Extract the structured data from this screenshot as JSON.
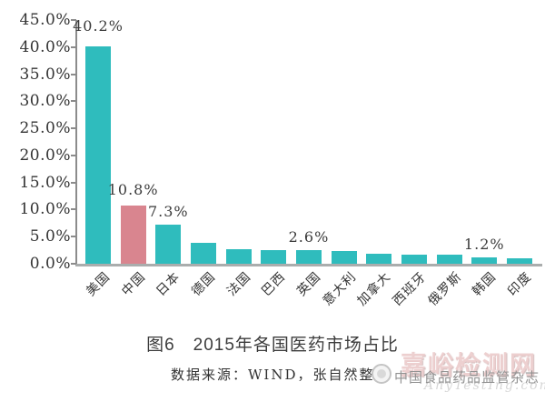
{
  "chart_data": {
    "type": "bar",
    "title": "图6　2015年各国医药市场占比",
    "categories": [
      "美国",
      "中国",
      "日本",
      "德国",
      "法国",
      "巴西",
      "英国",
      "意大利",
      "加拿大",
      "西班牙",
      "俄罗斯",
      "韩国",
      "印度"
    ],
    "values": [
      40.2,
      10.8,
      7.3,
      3.8,
      2.7,
      2.5,
      2.6,
      2.3,
      1.9,
      1.7,
      1.6,
      1.2,
      1.0
    ],
    "data_labels": {
      "0": "40.2%",
      "1": "10.8%",
      "2": "7.3%",
      "6": "2.6%",
      "11": "1.2%"
    },
    "y_ticks": [
      "45.0%",
      "40.0%",
      "35.0%",
      "30.0%",
      "25.0%",
      "20.0%",
      "15.0%",
      "10.0%",
      "5.0%",
      "0.0%"
    ],
    "ylim": [
      0,
      45
    ],
    "xlabel": "",
    "ylabel": "",
    "grid": false,
    "legend": false,
    "bar_color": "#2FBCBD",
    "highlight_color": "#D9858F",
    "highlight_index": 1
  },
  "caption": {
    "title": "图6　2015年各国医药市场占比",
    "source": "数据来源：WIND，张自然整理"
  },
  "watermark": {
    "site": "嘉峪检测网",
    "domain": "AnyTestIng.com",
    "magazine": "中国食品药品监管杂志"
  }
}
